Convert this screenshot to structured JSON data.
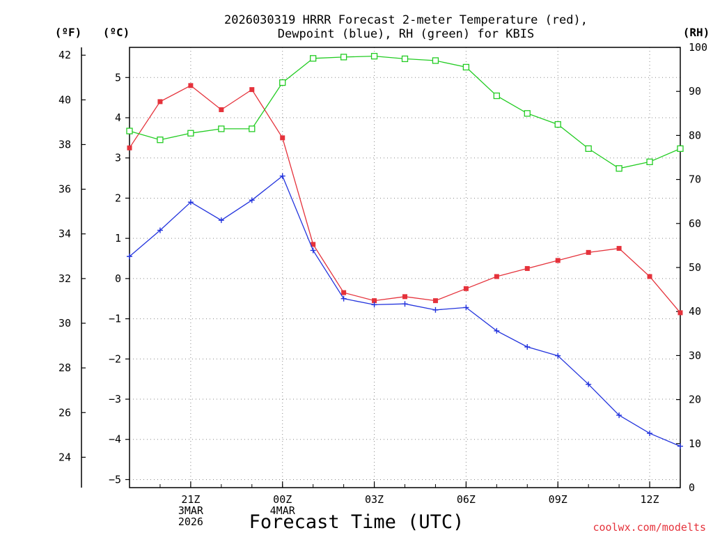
{
  "chart_data": {
    "type": "line",
    "title_lines": [
      "2026030319 HRRR Forecast 2-meter Temperature (red),",
      "Dewpoint (blue), RH (green) for KBIS"
    ],
    "xlabel": "Forecast Time (UTC)",
    "credit": "coolwx.com/modelts",
    "unit_labels": {
      "fahrenheit": "(ºF)",
      "celsius": "(ºC)",
      "rh": "(RH)"
    },
    "x_hours": [
      0,
      1,
      2,
      3,
      4,
      5,
      6,
      7,
      8,
      9,
      10,
      11,
      12,
      13,
      14,
      15,
      16,
      17,
      18
    ],
    "x_ticks": [
      {
        "hour": 2,
        "lines": [
          "21Z",
          "3MAR",
          "2026"
        ]
      },
      {
        "hour": 5,
        "lines": [
          "00Z",
          "4MAR"
        ]
      },
      {
        "hour": 8,
        "lines": [
          "03Z"
        ]
      },
      {
        "hour": 11,
        "lines": [
          "06Z"
        ]
      },
      {
        "hour": 14,
        "lines": [
          "09Z"
        ]
      },
      {
        "hour": 17,
        "lines": [
          "12Z"
        ]
      }
    ],
    "xlim": [
      0,
      18
    ],
    "celsius_axis": {
      "ylim": [
        -5.2,
        5.75
      ],
      "ticks": [
        -5,
        -4,
        -3,
        -2,
        -1,
        0,
        1,
        2,
        3,
        4,
        5
      ]
    },
    "fahrenheit_axis": {
      "ticks": [
        24,
        26,
        28,
        30,
        32,
        34,
        36,
        38,
        40,
        42
      ]
    },
    "rh_axis": {
      "ylim": [
        0,
        100
      ],
      "ticks": [
        0,
        10,
        20,
        30,
        40,
        50,
        60,
        70,
        80,
        90,
        100
      ]
    },
    "grid": true,
    "series": [
      {
        "name": "Temperature",
        "axis": "celsius",
        "color": "#e5323b",
        "marker": "filled-square",
        "values": [
          3.25,
          4.4,
          4.8,
          4.2,
          4.7,
          3.5,
          0.85,
          -0.35,
          -0.55,
          -0.45,
          -0.55,
          -0.25,
          0.05,
          0.25,
          0.45,
          0.65,
          0.75,
          0.05,
          -0.85
        ]
      },
      {
        "name": "Dewpoint",
        "axis": "celsius",
        "color": "#2233dd",
        "marker": "plus",
        "values": [
          0.55,
          1.2,
          1.9,
          1.45,
          1.95,
          2.55,
          0.7,
          -0.5,
          -0.65,
          -0.63,
          -0.78,
          -0.72,
          -1.3,
          -1.7,
          -1.92,
          -2.63,
          -3.4,
          -3.85,
          -4.17
        ]
      },
      {
        "name": "RH",
        "axis": "rh",
        "color": "#22cc22",
        "marker": "open-square",
        "values": [
          81,
          79,
          80.5,
          81.5,
          81.5,
          92,
          97.5,
          97.8,
          98,
          97.4,
          97,
          95.5,
          89,
          85,
          82.5,
          77,
          72.5,
          74,
          77
        ]
      }
    ]
  }
}
